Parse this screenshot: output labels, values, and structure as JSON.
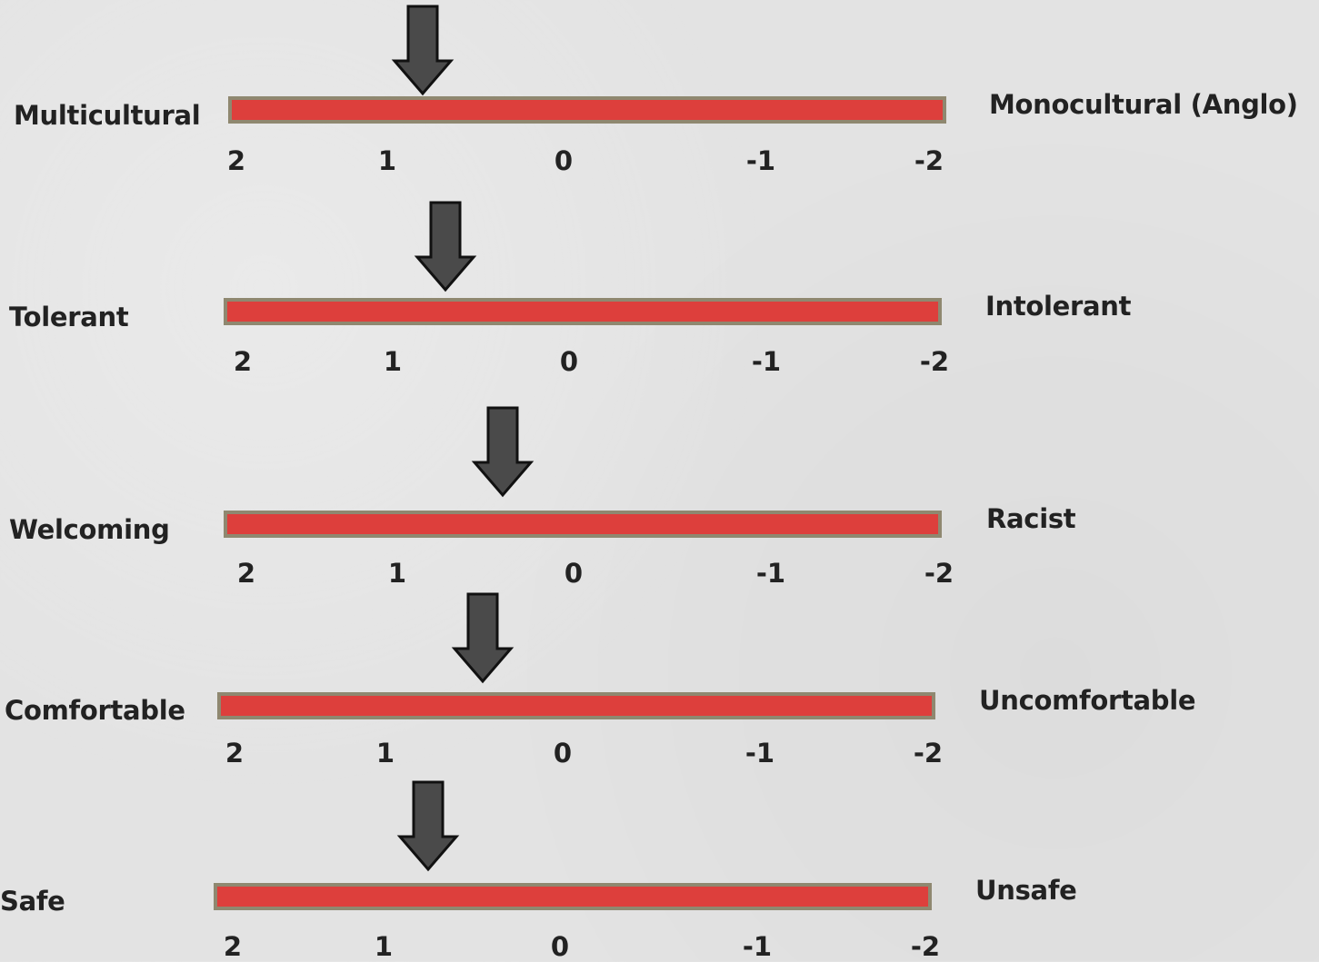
{
  "scale_ticks": [
    "2",
    "1",
    "0",
    "-1",
    "-2"
  ],
  "scales": [
    {
      "left_label": "Multicultural",
      "right_label": "Monocultural (Anglo)",
      "value": 0.8
    },
    {
      "left_label": "Tolerant",
      "right_label": "Intolerant",
      "value": 0.7
    },
    {
      "left_label": "Welcoming",
      "right_label": "Racist",
      "value": 0.4
    },
    {
      "left_label": "Comfortable",
      "right_label": "Uncomfortable",
      "value": 0.45
    },
    {
      "left_label": "Safe",
      "right_label": "Unsafe",
      "value": 0.75
    }
  ],
  "colors": {
    "bar_fill": "#dd3f3c",
    "bar_border": "#8f8870",
    "arrow_fill": "#4a4a4a",
    "arrow_stroke": "#111111"
  }
}
